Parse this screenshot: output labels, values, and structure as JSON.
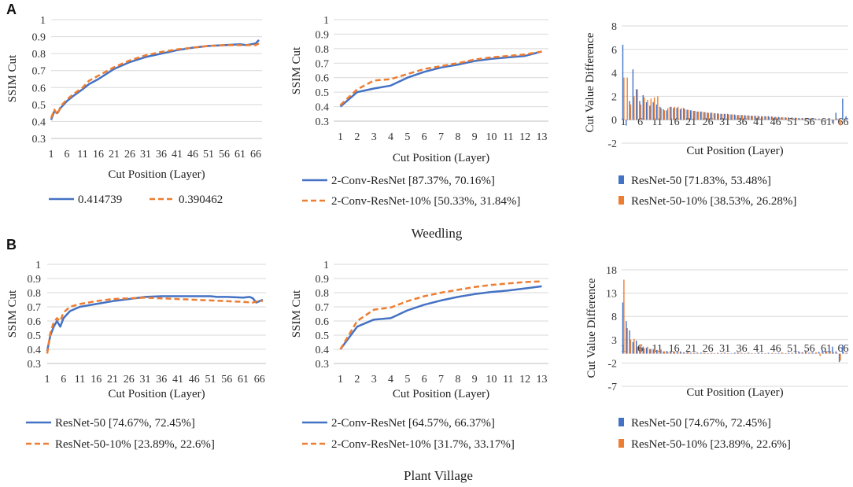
{
  "figure": {
    "sections": [
      {
        "label": "A",
        "title": "Weedling"
      },
      {
        "label": "B",
        "title": "Plant Village"
      }
    ]
  },
  "colors": {
    "blue": "#4472c4",
    "orange": "#ed7d31",
    "grid": "#d9d9d9"
  },
  "chart_data": [
    {
      "id": "A1",
      "type": "line",
      "ylabel": "SSIM Cut",
      "xlabel": "Cut Position (Layer)",
      "ylim": [
        0.3,
        1
      ],
      "yticks": [
        "0.3",
        "0.4",
        "0.5",
        "0.6",
        "0.7",
        "0.8",
        "0.9",
        "1"
      ],
      "xlim": [
        1,
        68
      ],
      "xticks": [
        1,
        6,
        11,
        16,
        21,
        26,
        31,
        36,
        41,
        46,
        51,
        56,
        61,
        66
      ],
      "series": [
        {
          "name": "0.414739",
          "color": "#4472c4",
          "dash": false,
          "x": [
            1,
            2,
            3,
            4,
            6,
            8,
            11,
            13,
            16,
            21,
            26,
            31,
            36,
            41,
            46,
            51,
            56,
            61,
            63,
            66,
            67
          ],
          "y": [
            0.41,
            0.46,
            0.45,
            0.48,
            0.52,
            0.55,
            0.59,
            0.62,
            0.65,
            0.71,
            0.75,
            0.78,
            0.8,
            0.82,
            0.835,
            0.845,
            0.85,
            0.855,
            0.85,
            0.86,
            0.88
          ]
        },
        {
          "name": "0.390462",
          "color": "#ed7d31",
          "dash": true,
          "x": [
            1,
            2,
            3,
            4,
            6,
            8,
            11,
            13,
            16,
            21,
            26,
            31,
            36,
            41,
            46,
            51,
            56,
            61,
            63,
            66,
            67
          ],
          "y": [
            0.42,
            0.47,
            0.44,
            0.49,
            0.53,
            0.56,
            0.6,
            0.64,
            0.67,
            0.72,
            0.76,
            0.79,
            0.81,
            0.825,
            0.835,
            0.845,
            0.85,
            0.85,
            0.85,
            0.85,
            0.86
          ]
        }
      ]
    },
    {
      "id": "A2",
      "type": "line",
      "ylabel": "SSIM Cut",
      "xlabel": "Cut Position (Layer)",
      "ylim": [
        0.3,
        1
      ],
      "yticks": [
        "0.3",
        "0.4",
        "0.5",
        "0.6",
        "0.7",
        "0.8",
        "0.9",
        "1"
      ],
      "xlim": [
        0.6,
        13.4
      ],
      "xticks": [
        1,
        2,
        3,
        4,
        5,
        6,
        7,
        8,
        9,
        10,
        11,
        12,
        13
      ],
      "series": [
        {
          "name": "2-Conv-ResNet [87.37%, 70.16%]",
          "color": "#4472c4",
          "dash": false,
          "x": [
            1,
            2,
            3,
            4,
            5,
            6,
            7,
            8,
            9,
            10,
            11,
            12,
            13
          ],
          "y": [
            0.4,
            0.5,
            0.525,
            0.545,
            0.6,
            0.64,
            0.67,
            0.69,
            0.715,
            0.73,
            0.74,
            0.75,
            0.78
          ]
        },
        {
          "name": "2-Conv-ResNet-10% [50.33%, 31.84%]",
          "color": "#ed7d31",
          "dash": true,
          "x": [
            1,
            2,
            3,
            4,
            5,
            6,
            7,
            8,
            9,
            10,
            11,
            12,
            13
          ],
          "y": [
            0.41,
            0.52,
            0.58,
            0.59,
            0.625,
            0.66,
            0.68,
            0.7,
            0.725,
            0.74,
            0.75,
            0.76,
            0.78
          ]
        }
      ]
    },
    {
      "id": "A3",
      "type": "bar",
      "ylabel": "Cut Value Difference",
      "xlabel": "Cut Position (Layer)",
      "ylim": [
        -2,
        8
      ],
      "yticks": [
        "-2",
        "0",
        "2",
        "4",
        "6",
        "8"
      ],
      "xlim": [
        0.5,
        67.5
      ],
      "xticks": [
        1,
        6,
        11,
        16,
        21,
        26,
        31,
        36,
        41,
        46,
        51,
        56,
        61,
        66
      ],
      "series": [
        {
          "name": "ResNet-50 [71.83%, 53.48%]",
          "color": "#4472c4",
          "values": [
            6.4,
            -0.5,
            1.6,
            4.3,
            2.6,
            1.6,
            2.1,
            1.5,
            1.2,
            1.5,
            1.3,
            1.1,
            0.9,
            0.8,
            1.1,
            1.0,
            1.0,
            0.9,
            1.0,
            0.85,
            0.8,
            0.75,
            0.7,
            0.7,
            0.65,
            0.6,
            0.6,
            0.55,
            0.55,
            0.5,
            0.5,
            0.5,
            0.45,
            0.45,
            0.4,
            0.4,
            0.4,
            0.38,
            0.35,
            0.35,
            0.33,
            0.3,
            0.3,
            0.3,
            0.28,
            0.25,
            0.25,
            0.22,
            0.2,
            0.2,
            0.2,
            0.18,
            0.15,
            0.15,
            0.15,
            0.12,
            0.1,
            0.1,
            0.1,
            0.08,
            -0.1,
            0.05,
            -0.3,
            0.6,
            0.0,
            1.8,
            0.3
          ]
        },
        {
          "name": "ResNet-50-10% [38.53%, 26.28%]",
          "color": "#ed7d31",
          "values": [
            3.6,
            3.6,
            1.3,
            2.0,
            2.6,
            1.3,
            1.9,
            1.7,
            1.8,
            1.9,
            2.0,
            1.0,
            0.8,
            1.0,
            1.1,
            1.1,
            1.1,
            1.0,
            0.9,
            0.85,
            0.8,
            0.75,
            0.7,
            0.7,
            0.65,
            0.6,
            0.6,
            0.55,
            0.5,
            0.5,
            0.5,
            0.45,
            0.45,
            0.4,
            0.4,
            0.4,
            0.35,
            0.35,
            0.33,
            0.3,
            0.3,
            0.28,
            0.28,
            0.25,
            0.25,
            0.22,
            0.2,
            0.2,
            0.18,
            0.15,
            0.15,
            0.15,
            0.12,
            0.1,
            0.1,
            0.1,
            0.08,
            0.05,
            0.05,
            0.05,
            0.0,
            0.0,
            -0.4,
            0.1,
            -0.5,
            0.0,
            0.0
          ]
        }
      ]
    },
    {
      "id": "B1",
      "type": "line",
      "ylabel": "SSIM Cut",
      "xlabel": "Cut Position (Layer)",
      "ylim": [
        0.3,
        1
      ],
      "yticks": [
        "0.3",
        "0.4",
        "0.5",
        "0.6",
        "0.7",
        "0.8",
        "0.9",
        "1"
      ],
      "xlim": [
        1,
        68
      ],
      "xticks": [
        1,
        6,
        11,
        16,
        21,
        26,
        31,
        36,
        41,
        46,
        51,
        56,
        61,
        66
      ],
      "series": [
        {
          "name": "ResNet-50 [74.67%, 72.45%]",
          "color": "#4472c4",
          "dash": false,
          "x": [
            1,
            2,
            3,
            4,
            5,
            6,
            8,
            11,
            16,
            21,
            26,
            31,
            36,
            41,
            46,
            51,
            53,
            56,
            61,
            63,
            64,
            65,
            66,
            67
          ],
          "y": [
            0.39,
            0.5,
            0.56,
            0.6,
            0.56,
            0.62,
            0.67,
            0.7,
            0.72,
            0.74,
            0.755,
            0.77,
            0.775,
            0.775,
            0.775,
            0.775,
            0.77,
            0.77,
            0.765,
            0.77,
            0.76,
            0.73,
            0.74,
            0.75
          ]
        },
        {
          "name": "ResNet-50-10% [23.89%, 22.6%]",
          "color": "#ed7d31",
          "dash": true,
          "x": [
            1,
            2,
            3,
            4,
            5,
            6,
            8,
            11,
            16,
            21,
            26,
            31,
            36,
            41,
            46,
            51,
            56,
            61,
            64,
            66,
            67
          ],
          "y": [
            0.37,
            0.52,
            0.59,
            0.62,
            0.6,
            0.66,
            0.7,
            0.72,
            0.74,
            0.755,
            0.76,
            0.765,
            0.76,
            0.755,
            0.75,
            0.745,
            0.74,
            0.735,
            0.73,
            0.745,
            0.74
          ]
        }
      ]
    },
    {
      "id": "B2",
      "type": "line",
      "ylabel": "SSIM Cut",
      "xlabel": "Cut Position (Layer)",
      "ylim": [
        0.3,
        1
      ],
      "yticks": [
        "0.3",
        "0.4",
        "0.5",
        "0.6",
        "0.7",
        "0.8",
        "0.9",
        "1"
      ],
      "xlim": [
        0.6,
        13.4
      ],
      "xticks": [
        1,
        2,
        3,
        4,
        5,
        6,
        7,
        8,
        9,
        10,
        11,
        12,
        13
      ],
      "series": [
        {
          "name": "2-Conv-ResNet [64.57%, 66.37%]",
          "color": "#4472c4",
          "dash": false,
          "x": [
            1,
            2,
            3,
            4,
            5,
            6,
            7,
            8,
            9,
            10,
            11,
            12,
            13
          ],
          "y": [
            0.4,
            0.56,
            0.61,
            0.62,
            0.675,
            0.715,
            0.745,
            0.77,
            0.79,
            0.805,
            0.815,
            0.83,
            0.845
          ]
        },
        {
          "name": "2-Conv-ResNet-10% [31.7%, 33.17%]",
          "color": "#ed7d31",
          "dash": true,
          "x": [
            1,
            2,
            3,
            4,
            5,
            6,
            7,
            8,
            9,
            10,
            11,
            12,
            13
          ],
          "y": [
            0.4,
            0.6,
            0.68,
            0.695,
            0.74,
            0.775,
            0.8,
            0.82,
            0.84,
            0.855,
            0.865,
            0.875,
            0.88
          ]
        }
      ]
    },
    {
      "id": "B3",
      "type": "bar",
      "ylabel": "Cut Value Difference",
      "xlabel": "Cut Position (Layer)",
      "ylim": [
        -7,
        18
      ],
      "yticks": [
        "-7",
        "-2",
        "3",
        "8",
        "13",
        "18"
      ],
      "xlim": [
        0.5,
        67.5
      ],
      "xticks": [
        1,
        6,
        11,
        16,
        21,
        26,
        31,
        36,
        41,
        46,
        51,
        56,
        61,
        66
      ],
      "series": [
        {
          "name": "ResNet-50 [74.67%, 72.45%]",
          "color": "#4472c4",
          "values": [
            11,
            7,
            5,
            2.5,
            2.8,
            1.5,
            1.5,
            1.3,
            1.0,
            1.0,
            0.8,
            0.8,
            0.5,
            0.6,
            0.5,
            0.4,
            0.3,
            0.5,
            0.3,
            0.3,
            0.2,
            0.2,
            0.3,
            0.2,
            0.2,
            0.1,
            0.1,
            0.1,
            0.2,
            0.1,
            0.2,
            0.1,
            0.1,
            0.2,
            0.3,
            0.2,
            0.1,
            0.2,
            0.1,
            0.1,
            0.3,
            0.2,
            0.1,
            0.2,
            0.1,
            0.1,
            0.2,
            0.2,
            0.1,
            0.2,
            0.2,
            0.4,
            0.5,
            0.3,
            0.7,
            0.2,
            0.3,
            0.2,
            0.4,
            0.8,
            0.6,
            1.0,
            1.5,
            0.5,
            -1.8,
            1.9,
            0.2
          ]
        },
        {
          "name": "ResNet-50-10% [23.89%, 22.6%]",
          "color": "#ed7d31",
          "values": [
            15.9,
            5.5,
            3.0,
            3.2,
            1.5,
            2.0,
            1.2,
            1.5,
            1.0,
            0.9,
            0.8,
            0.9,
            0.5,
            0.4,
            0.4,
            0.5,
            0.4,
            0.3,
            0.2,
            0.4,
            0.2,
            0.2,
            0.1,
            0.2,
            0.2,
            0.1,
            0.2,
            0.1,
            0.1,
            0.2,
            0.2,
            0.1,
            0.1,
            0.2,
            0.2,
            0.1,
            0.1,
            0.2,
            0.1,
            0.1,
            0.2,
            0.1,
            0.1,
            0.1,
            0.2,
            0.1,
            0.1,
            0.2,
            0.1,
            0.1,
            0.1,
            0.2,
            0.3,
            0.2,
            0.3,
            0.2,
            0.2,
            0.3,
            -0.5,
            0.3,
            0.5,
            0.4,
            0.3,
            0.2,
            -1.5,
            0.3,
            0.2
          ]
        }
      ]
    }
  ]
}
